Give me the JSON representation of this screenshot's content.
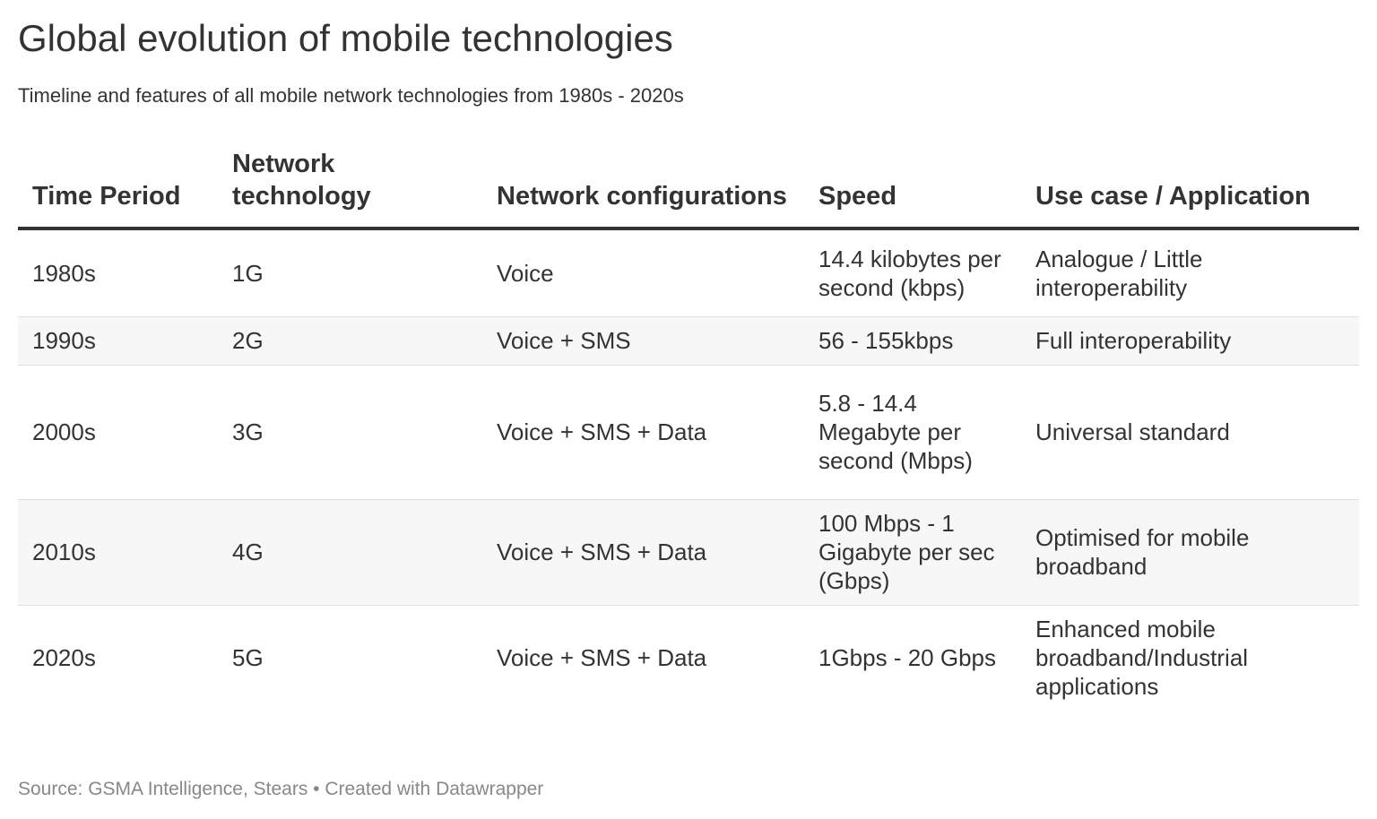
{
  "title": "Global evolution of mobile technologies",
  "subtitle": "Timeline and features of all mobile network technologies from 1980s - 2020s",
  "source": "Source: GSMA Intelligence, Stears • Created with Datawrapper",
  "chart_data": {
    "type": "table",
    "columns": [
      "Time Period",
      "Network technology",
      "Network configurations",
      "Speed",
      "Use case / Application"
    ],
    "rows": [
      [
        "1980s",
        "1G",
        "Voice",
        "14.4 kilobytes per second (kbps)",
        "Analogue / Little interoperability"
      ],
      [
        "1990s",
        "2G",
        "Voice + SMS",
        "56 - 155kbps",
        "Full interoperability"
      ],
      [
        "2000s",
        "3G",
        "Voice + SMS + Data",
        "5.8 - 14.4 Megabyte per second (Mbps)",
        "Universal standard"
      ],
      [
        "2010s",
        "4G",
        "Voice + SMS + Data",
        "100 Mbps - 1 Gigabyte per sec (Gbps)",
        "Optimised for mobile broadband"
      ],
      [
        "2020s",
        "5G",
        "Voice + SMS + Data",
        "1Gbps - 20 Gbps",
        "Enhanced mobile broadband/Industrial applications"
      ]
    ]
  },
  "colors": {
    "text": "#333333",
    "source_text": "#888888",
    "row_shade": "#f7f7f7",
    "header_rule": "#333333"
  }
}
